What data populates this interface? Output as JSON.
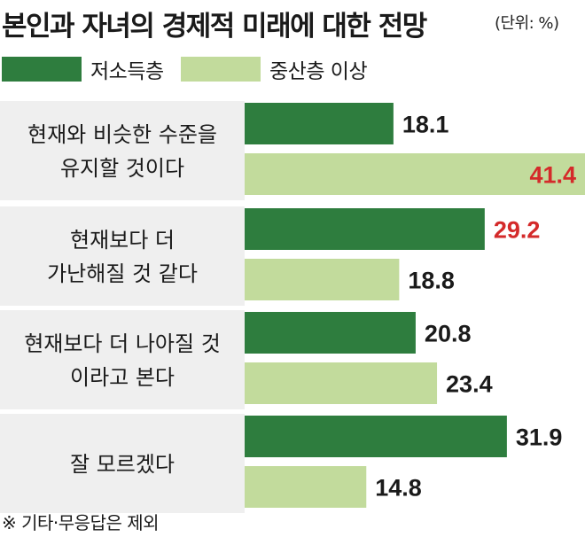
{
  "title": "본인과 자녀의 경제적 미래에 대한 전망",
  "unit": "(단위: %)",
  "footnote": "※ 기타·무응답은 제외",
  "colors": {
    "low_income": "#2e7d3e",
    "middle_class": "#c2db9c",
    "highlight_text": "#d42a2a",
    "normal_text": "#1a1a1a",
    "band": "#efefef"
  },
  "chart_data": {
    "type": "bar",
    "orientation": "horizontal",
    "categories": [
      [
        "현재와 비슷한 수준을",
        "유지할 것이다"
      ],
      [
        "현재보다 더",
        "가난해질 것 같다"
      ],
      [
        "현재보다 더 나아질 것",
        "이라고 본다"
      ],
      [
        "잘 모르겠다"
      ]
    ],
    "series": [
      {
        "name": "저소득층",
        "values": [
          18.1,
          29.2,
          20.8,
          31.9
        ]
      },
      {
        "name": "중산층 이상",
        "values": [
          41.4,
          18.8,
          23.4,
          14.8
        ]
      }
    ],
    "value_labels": [
      [
        "18.1",
        "29.2",
        "20.8",
        "31.9"
      ],
      [
        "41.4",
        "18.8",
        "23.4",
        "14.8"
      ]
    ],
    "highlighted": [
      [
        false,
        true,
        false,
        false
      ],
      [
        true,
        false,
        false,
        false
      ]
    ],
    "xlim": [
      0,
      41.4
    ],
    "grid": false,
    "legend_position": "top-left"
  }
}
